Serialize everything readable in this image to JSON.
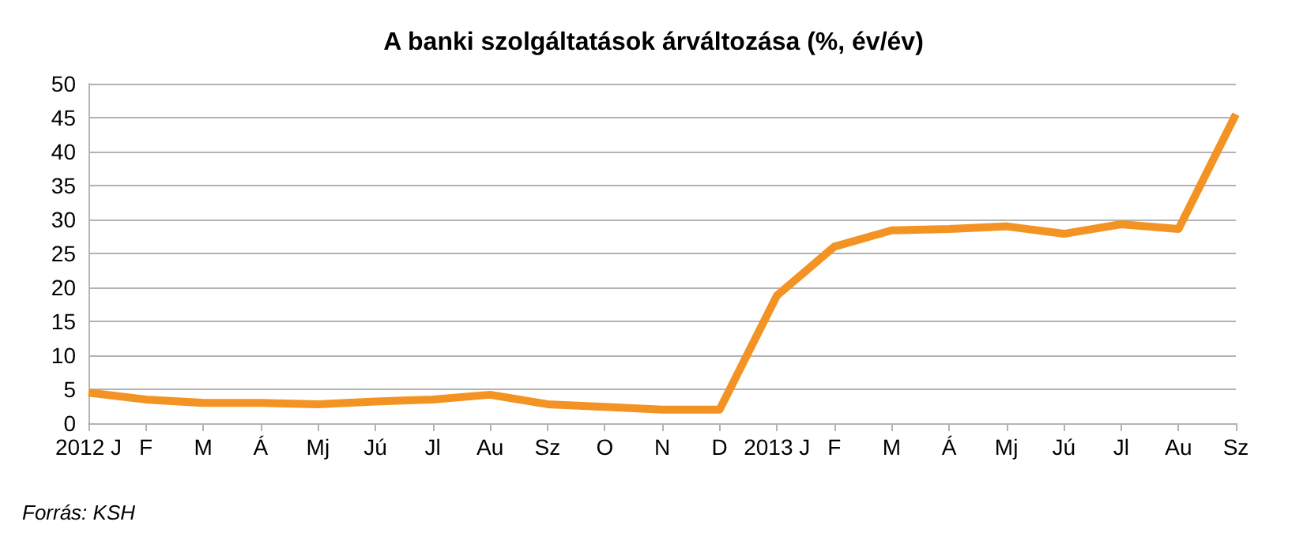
{
  "chart_data": {
    "type": "line",
    "title": "A banki szolgáltatások árváltozása (%, év/év)",
    "categories": [
      "2012 J",
      "F",
      "M",
      "Á",
      "Mj",
      "Jú",
      "Jl",
      "Au",
      "Sz",
      "O",
      "N",
      "D",
      "2013 J",
      "F",
      "M",
      "Á",
      "Mj",
      "Jú",
      "Jl",
      "Au",
      "Sz"
    ],
    "series": [
      {
        "color": "#f39323",
        "values": [
          4.5,
          3.5,
          3.0,
          3.0,
          2.8,
          3.2,
          3.5,
          4.2,
          2.8,
          2.4,
          2.0,
          2.0,
          18.8,
          26.0,
          28.4,
          28.6,
          29.0,
          27.9,
          29.3,
          28.6,
          45.5
        ]
      }
    ],
    "ylim": [
      0,
      50
    ],
    "yticks": [
      0,
      5,
      10,
      15,
      20,
      25,
      30,
      35,
      40,
      45,
      50
    ],
    "grid": "y",
    "marker": "none",
    "annotations": [
      "Forrás: KSH"
    ]
  }
}
